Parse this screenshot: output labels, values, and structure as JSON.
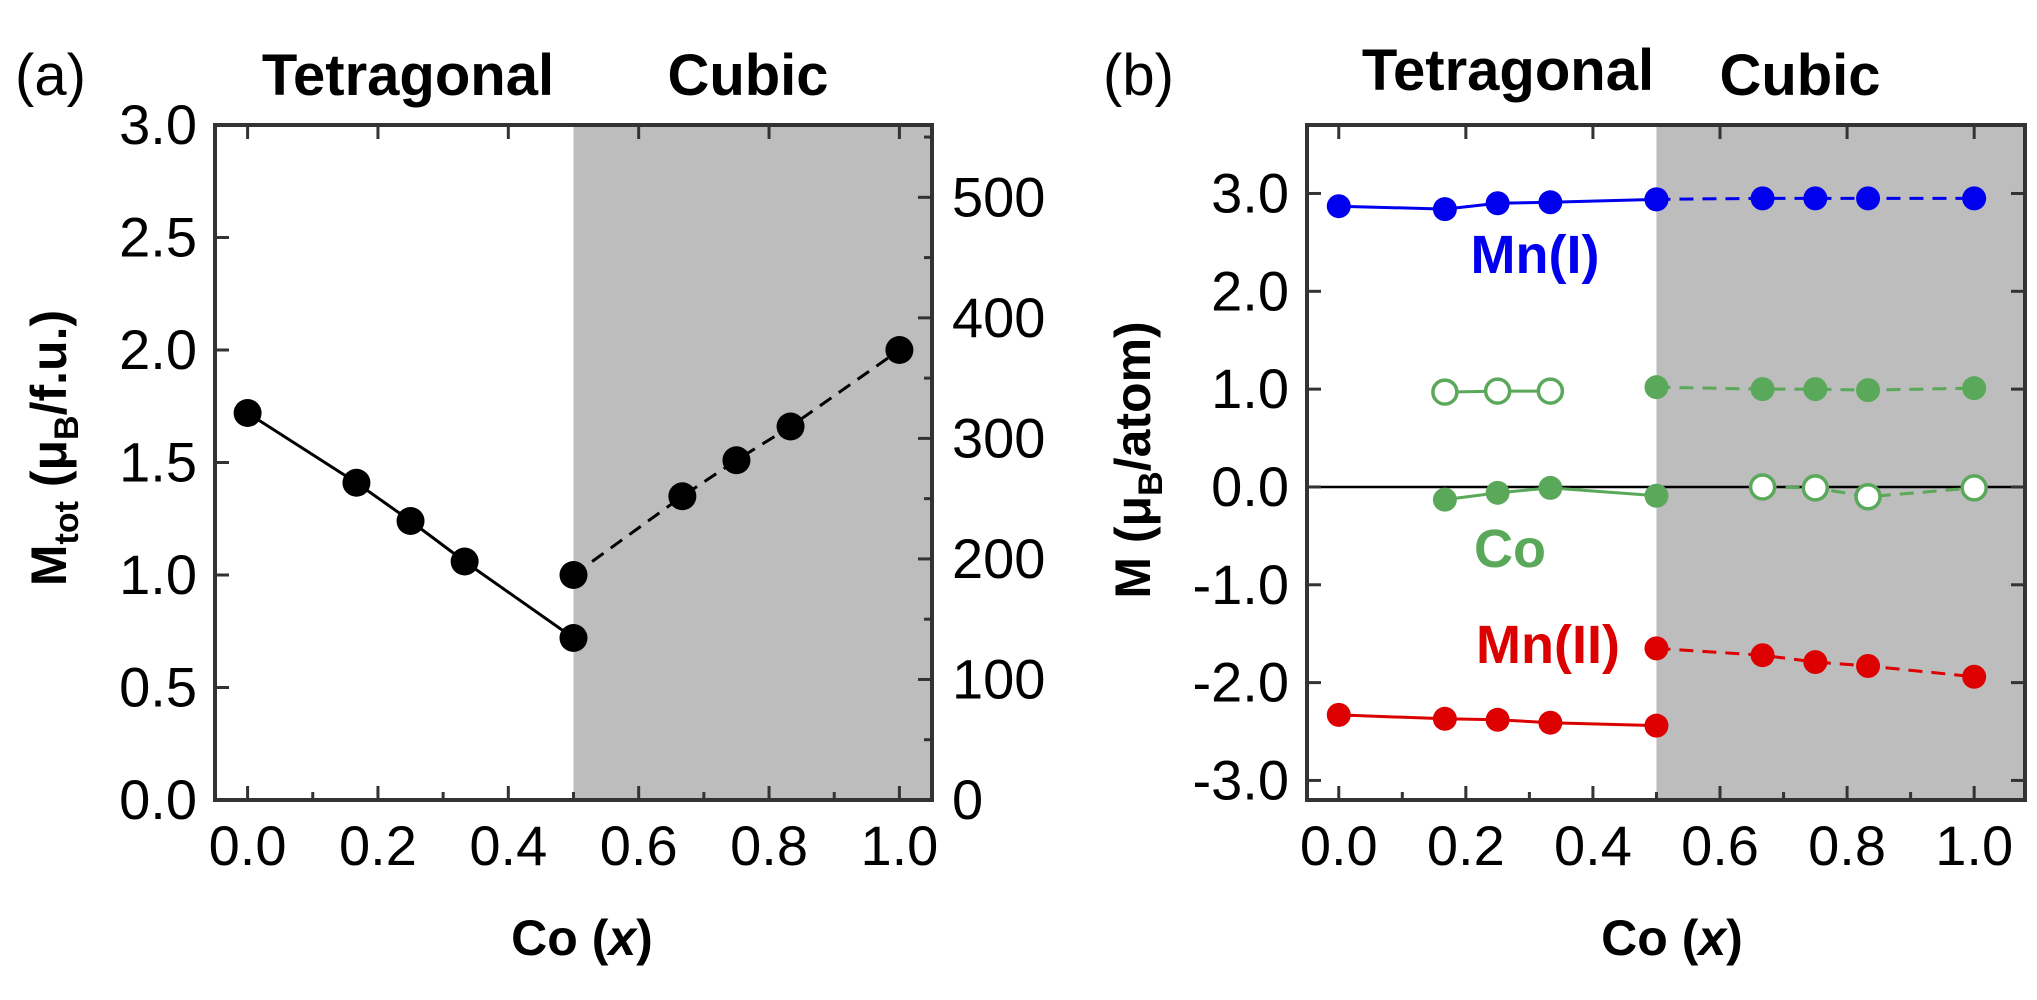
{
  "panel_a": {
    "letter": "(a)",
    "region_left": "Tetragonal",
    "region_right": "Cubic",
    "xlabel_prefix": "Co (",
    "xlabel_var": "x",
    "xlabel_suffix": ")",
    "ylabel_main": "M",
    "ylabel_sub": "tot",
    "ylabel_open": " (μ",
    "ylabel_unit_sub": "B",
    "ylabel_unit_rest": "/f.u.)"
  },
  "panel_b": {
    "letter": "(b)",
    "region_left": "Tetragonal",
    "region_right": "Cubic",
    "xlabel_prefix": "Co (",
    "xlabel_var": "x",
    "xlabel_suffix": ")",
    "ylabel_main": "M (μ",
    "ylabel_unit_sub": "B",
    "ylabel_unit_rest": "/atom)"
  },
  "colors": {
    "black": "#000000",
    "shade": "#bdbdbd",
    "mn1": "#0000ee",
    "co": "#5aa85a",
    "mn2": "#dd0000"
  },
  "chart_data": [
    {
      "id": "a",
      "type": "line",
      "xlim": [
        -0.05,
        1.05
      ],
      "ylim": [
        0,
        3
      ],
      "y2lim": [
        0,
        560
      ],
      "x_ticks": [
        "0.0",
        "0.2",
        "0.4",
        "0.6",
        "0.8",
        "1.0"
      ],
      "y_ticks": [
        "0.0",
        "0.5",
        "1.0",
        "1.5",
        "2.0",
        "2.5",
        "3.0"
      ],
      "y2_ticks": [
        "0",
        "100",
        "200",
        "300",
        "400",
        "500"
      ],
      "shade_from": 0.5,
      "series": [
        {
          "name": "Tetragonal",
          "style": "solid",
          "marker": "filled",
          "color": "#000000",
          "x": [
            0.0,
            0.167,
            0.25,
            0.333,
            0.5
          ],
          "y": [
            1.72,
            1.41,
            1.24,
            1.06,
            0.72
          ]
        },
        {
          "name": "Cubic",
          "style": "dashed",
          "marker": "filled",
          "color": "#000000",
          "x": [
            0.5,
            0.667,
            0.75,
            0.833,
            1.0
          ],
          "y": [
            1.0,
            1.35,
            1.51,
            1.66,
            2.0
          ]
        }
      ]
    },
    {
      "id": "b",
      "type": "line",
      "xlim": [
        -0.05,
        1.08
      ],
      "ylim": [
        -3.2,
        3.7
      ],
      "x_ticks": [
        "0.0",
        "0.2",
        "0.4",
        "0.6",
        "0.8",
        "1.0"
      ],
      "y_ticks": [
        "-3.0",
        "-2.0",
        "-1.0",
        "0.0",
        "1.0",
        "2.0",
        "3.0"
      ],
      "shade_from": 0.5,
      "zero_line": true,
      "labels": {
        "mn1": "Mn(I)",
        "co": "Co",
        "mn2": "Mn(II)"
      },
      "series": [
        {
          "name": "Mn(I) tetragonal",
          "color": "#0000ee",
          "style": "solid",
          "marker": "filled",
          "x": [
            0.0,
            0.167,
            0.25,
            0.333,
            0.5
          ],
          "y": [
            2.87,
            2.84,
            2.9,
            2.91,
            2.94
          ]
        },
        {
          "name": "Mn(I) cubic",
          "color": "#0000ee",
          "style": "dashed",
          "marker": "filled",
          "x": [
            0.5,
            0.667,
            0.75,
            0.833,
            1.0
          ],
          "y": [
            2.94,
            2.95,
            2.95,
            2.95,
            2.95
          ]
        },
        {
          "name": "Co tetragonal (open)",
          "color": "#5aa85a",
          "style": "solid",
          "marker": "open",
          "x": [
            0.167,
            0.25,
            0.333
          ],
          "y": [
            0.97,
            0.98,
            0.98
          ]
        },
        {
          "name": "Co tetragonal (filled)",
          "color": "#5aa85a",
          "style": "solid",
          "marker": "filled",
          "x": [
            0.167,
            0.25,
            0.333,
            0.5
          ],
          "y": [
            -0.13,
            -0.06,
            -0.01,
            -0.09
          ]
        },
        {
          "name": "Co cubic (filled)",
          "color": "#5aa85a",
          "style": "dashed",
          "marker": "filled",
          "x": [
            0.5,
            0.667,
            0.75,
            0.833,
            1.0
          ],
          "y": [
            1.02,
            1.0,
            1.0,
            0.99,
            1.01
          ]
        },
        {
          "name": "Co cubic (open)",
          "color": "#5aa85a",
          "style": "dashed",
          "marker": "open",
          "x": [
            0.667,
            0.75,
            0.833,
            1.0
          ],
          "y": [
            0.0,
            -0.01,
            -0.1,
            -0.01
          ]
        },
        {
          "name": "Mn(II) tetragonal",
          "color": "#dd0000",
          "style": "solid",
          "marker": "filled",
          "x": [
            0.0,
            0.167,
            0.25,
            0.333,
            0.5
          ],
          "y": [
            -2.33,
            -2.37,
            -2.38,
            -2.41,
            -2.44
          ]
        },
        {
          "name": "Mn(II) cubic",
          "color": "#dd0000",
          "style": "dashed",
          "marker": "filled",
          "x": [
            0.5,
            0.667,
            0.75,
            0.833,
            1.0
          ],
          "y": [
            -1.65,
            -1.72,
            -1.79,
            -1.83,
            -1.94
          ]
        }
      ]
    }
  ]
}
